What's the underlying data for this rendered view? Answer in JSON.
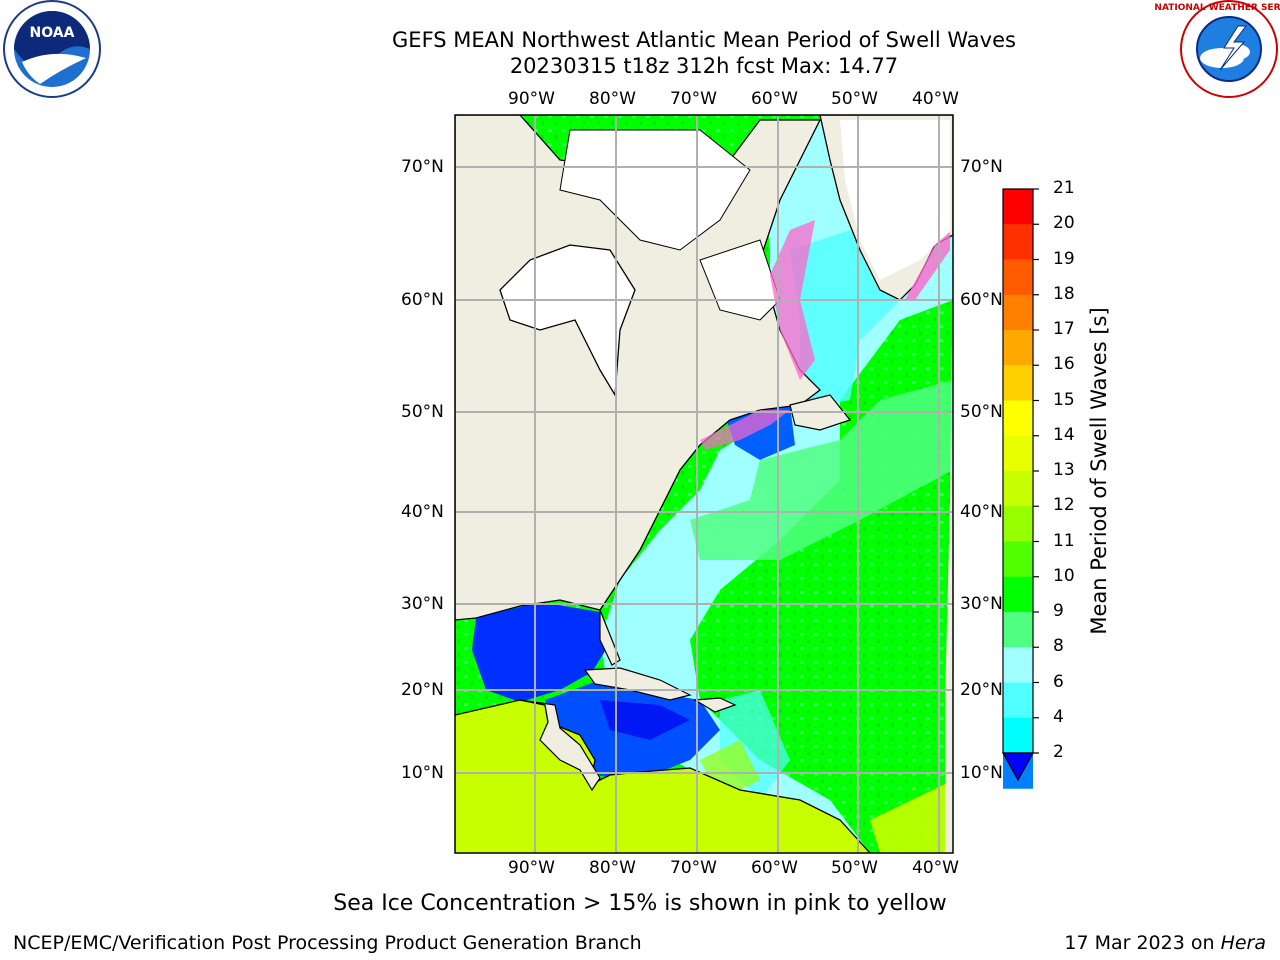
{
  "title_line1": "GEFS MEAN Northwest Atlantic Mean Period of Swell Waves",
  "title_line2": "20230315 t18z 312h fcst   Max: 14.77",
  "left_logo": {
    "name": "noaa-logo",
    "text": "NOAA"
  },
  "right_logo": {
    "name": "nws-logo",
    "text": "NATIONAL WEATHER SERVICE"
  },
  "map": {
    "projection": "Mercator",
    "lon_range": [
      -100,
      -38
    ],
    "lat_range": [
      2,
      75
    ],
    "lon_ticks": [
      "90°W",
      "80°W",
      "70°W",
      "60°W",
      "50°W",
      "40°W"
    ],
    "lat_ticks": [
      "70°N",
      "60°N",
      "50°N",
      "40°N",
      "30°N",
      "20°N",
      "10°N"
    ],
    "grid": true,
    "land_color": "#efeee0",
    "ice_color": "#ffffff"
  },
  "colorbar": {
    "label": "Mean Period of Swell Waves [s]",
    "ticks": [
      "21",
      "20",
      "19",
      "18",
      "17",
      "16",
      "15",
      "14",
      "13",
      "12",
      "11",
      "10",
      "9",
      "8",
      "6",
      "4",
      "2"
    ],
    "colors": [
      "#ff0000",
      "#ff3000",
      "#ff5a00",
      "#ff8000",
      "#ffa800",
      "#ffd000",
      "#ffff00",
      "#e8ff00",
      "#c8ff00",
      "#96ff00",
      "#50ff00",
      "#00ff00",
      "#50ff80",
      "#a0ffff",
      "#50ffff",
      "#00ffff",
      "#0080ff"
    ],
    "under_color": "#0000ff"
  },
  "note": "Sea Ice Concentration > 15% is shown in pink to yellow",
  "credit": "NCEP/EMC/Verification Post Processing Product Generation Branch",
  "stamp_date": "17 Mar 2023 on ",
  "stamp_host": "Hera"
}
